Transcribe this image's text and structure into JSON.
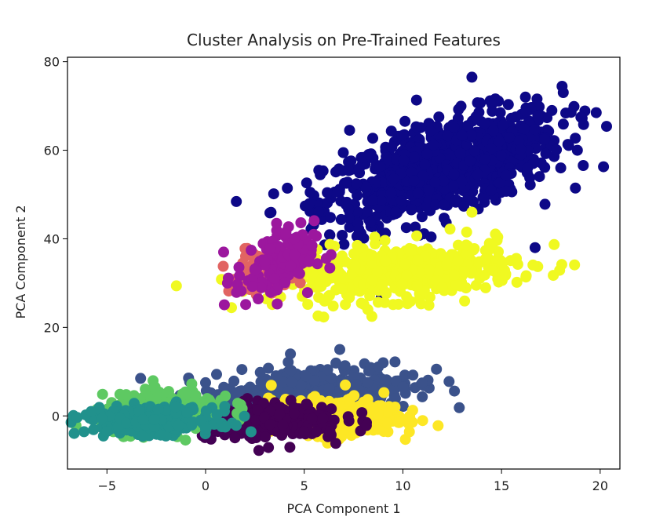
{
  "chart_data": {
    "type": "scatter",
    "title": "Cluster Analysis on Pre-Trained Features",
    "xlabel": "PCA Component 1",
    "ylabel": "PCA Component 2",
    "xlim": [
      -7,
      21
    ],
    "ylim": [
      -12,
      81
    ],
    "xticks": [
      -5,
      0,
      5,
      10,
      15,
      20
    ],
    "yticks": [
      0,
      20,
      40,
      60,
      80
    ],
    "xtick_labels": [
      "−5",
      "0",
      "5",
      "10",
      "15",
      "20"
    ],
    "ytick_labels": [
      "0",
      "20",
      "40",
      "60",
      "80"
    ],
    "grid": false,
    "legend": "none",
    "series": [
      {
        "color": "#0d0887",
        "center": [
          12.0,
          56.0
        ],
        "spread": [
          3.0,
          6.5
        ],
        "corr": 0.6,
        "count": 900,
        "points": [
          [
            19.8,
            68.5
          ],
          [
            18.0,
            56.0
          ],
          [
            5.3,
            50.5
          ],
          [
            7.3,
            64.5
          ],
          [
            8.9,
            26.7
          ],
          [
            13.5,
            76.5
          ],
          [
            17.2,
            47.8
          ],
          [
            16.7,
            38.0
          ]
        ]
      },
      {
        "color": "#f0f921",
        "center": [
          9.8,
          32.5
        ],
        "spread": [
          3.0,
          3.2
        ],
        "corr": 0.3,
        "count": 450,
        "points": [
          [
            4.9,
            27.0
          ],
          [
            12.0,
            29.0
          ],
          [
            14.5,
            38.5
          ],
          [
            13.5,
            46.0
          ],
          [
            6.0,
            32.0
          ]
        ]
      },
      {
        "color": "#e16462",
        "center": [
          3.3,
          33.0
        ],
        "spread": [
          0.8,
          2.5
        ],
        "corr": 0.3,
        "count": 110,
        "points": [
          [
            1.2,
            31.0
          ],
          [
            2.0,
            37.8
          ],
          [
            3.5,
            34.0
          ]
        ]
      },
      {
        "color": "#9c179e",
        "center": [
          3.5,
          34.0
        ],
        "spread": [
          1.0,
          4.0
        ],
        "corr": 0.3,
        "count": 120,
        "points": [
          [
            1.8,
            28.2
          ],
          [
            3.6,
            43.5
          ],
          [
            4.5,
            40.0
          ]
        ]
      },
      {
        "color": "#3b528b",
        "center": [
          5.5,
          5.5
        ],
        "spread": [
          2.6,
          3.0
        ],
        "corr": 0.3,
        "count": 420,
        "points": [
          [
            9.6,
            12.2
          ],
          [
            6.8,
            15.0
          ],
          [
            0.0,
            7.5
          ],
          [
            9.0,
            12.0
          ],
          [
            4.3,
            14.0
          ]
        ]
      },
      {
        "color": "#fde725",
        "center": [
          6.5,
          -0.2
        ],
        "spread": [
          1.6,
          2.0
        ],
        "corr": 0.0,
        "count": 380,
        "points": [
          [
            9.6,
            2.0
          ],
          [
            9.8,
            -1.5
          ],
          [
            8.5,
            1.5
          ],
          [
            4.0,
            -3.0
          ]
        ]
      },
      {
        "color": "#440154",
        "center": [
          3.0,
          -1.0
        ],
        "spread": [
          2.0,
          2.0
        ],
        "corr": 0.0,
        "count": 260,
        "points": [
          [
            6.6,
            -6.2
          ],
          [
            2.7,
            -7.8
          ],
          [
            -3.0,
            2.5
          ],
          [
            4.5,
            0.5
          ]
        ]
      },
      {
        "color": "#5ec962",
        "center": [
          -2.0,
          1.0
        ],
        "spread": [
          1.6,
          2.2
        ],
        "corr": 0.2,
        "count": 300,
        "points": [
          [
            -5.5,
            1.5
          ],
          [
            1.0,
            4.5
          ],
          [
            -1.0,
            5.0
          ]
        ]
      },
      {
        "color": "#21918c",
        "center": [
          -2.8,
          -1.0
        ],
        "spread": [
          1.6,
          1.5
        ],
        "corr": 0.0,
        "count": 280,
        "points": [
          [
            -5.8,
            1.0
          ],
          [
            0.0,
            -3.0
          ],
          [
            1.0,
            -2.5
          ],
          [
            -5.0,
            -3.5
          ]
        ]
      }
    ]
  }
}
